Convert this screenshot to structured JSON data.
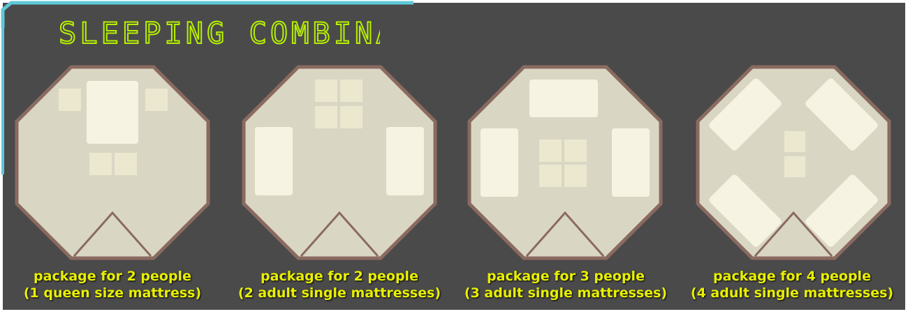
{
  "title": "SLEEPING COMBINATIONS",
  "colors": {
    "background": "#4a4a4a",
    "frame_accent": "#5fc8d8",
    "title": "#b6f000",
    "caption": "#e8f000",
    "tent_floor": "#d9d7c4",
    "tent_border": "#8a6a60",
    "mattress": "#f6f3e2",
    "extra_cushion": "#ebe8cf"
  },
  "packages": [
    {
      "title": "package for 2 people",
      "subtitle": "(1 queen size mattress)"
    },
    {
      "title": "package for 2 people",
      "subtitle": "(2 adult single mattresses)"
    },
    {
      "title": "package for 3 people",
      "subtitle": "(3 adult single mattresses)"
    },
    {
      "title": "package for 4 people",
      "subtitle": "(4 adult single mattresses)"
    }
  ]
}
